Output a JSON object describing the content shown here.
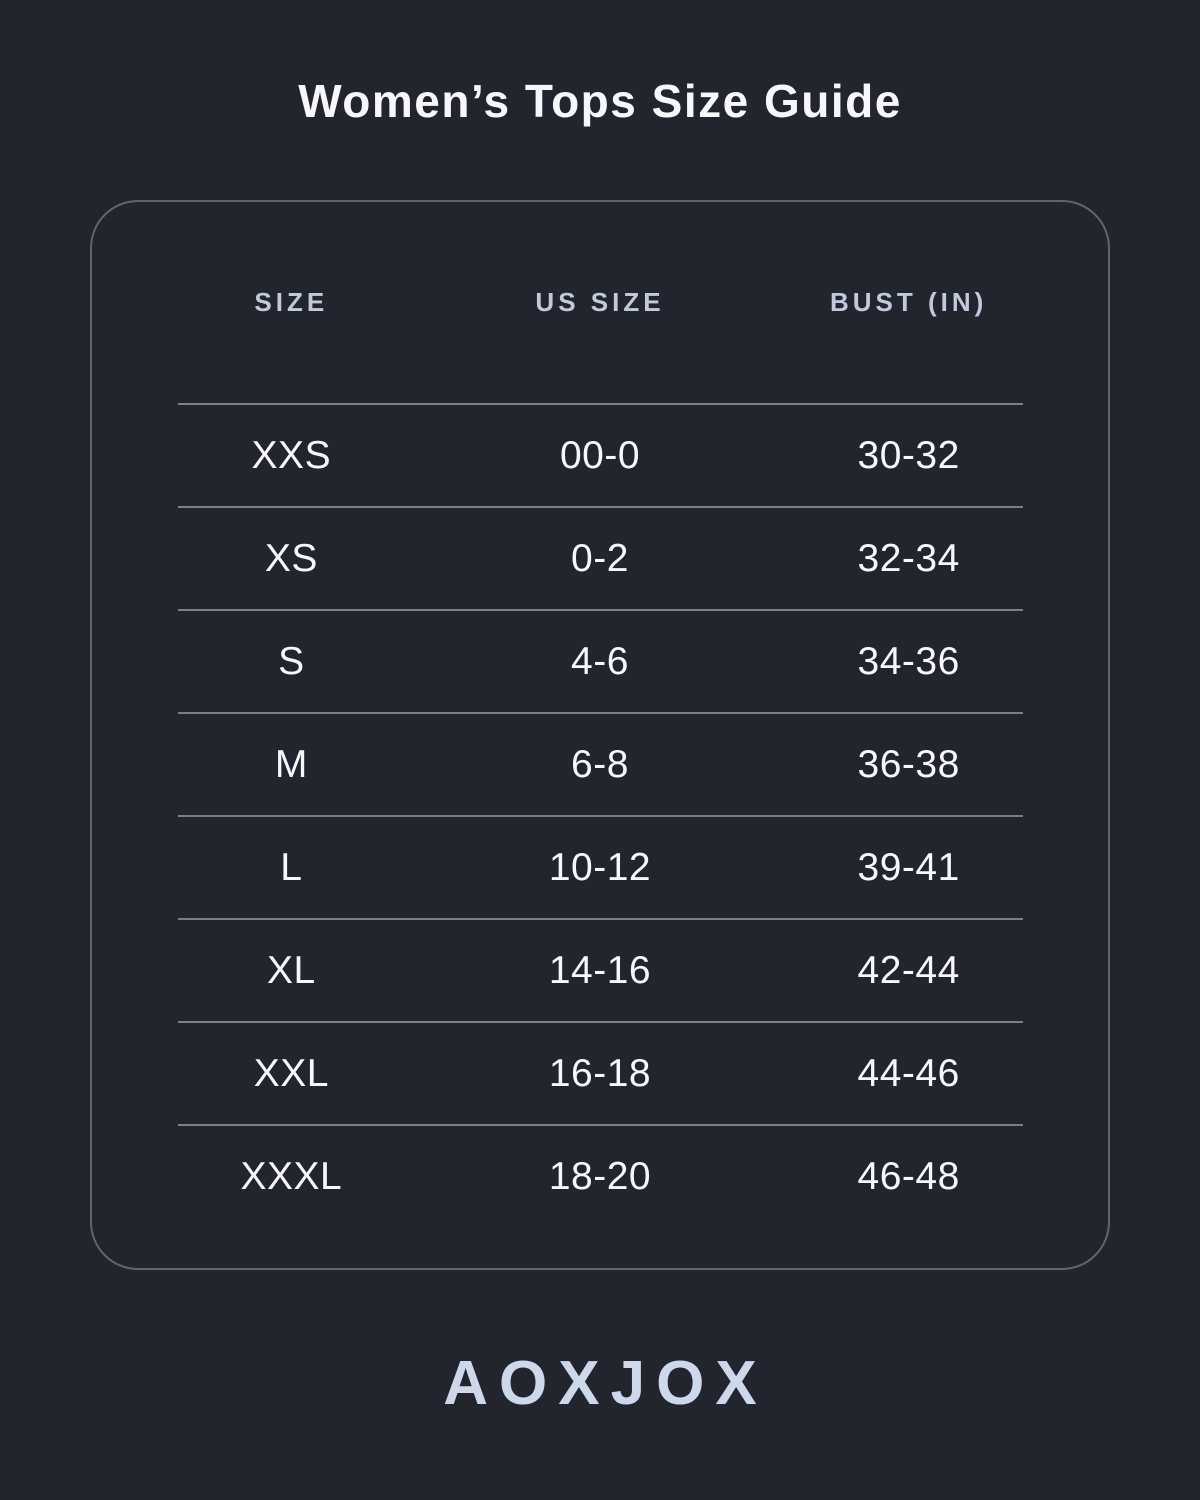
{
  "page": {
    "title": "Women’s Tops Size Guide",
    "brand": "AOXJOX"
  },
  "colors": {
    "background": "#23252e",
    "title_text": "#f5f7fa",
    "header_text": "#bfcadd",
    "cell_text": "#f5f7fa",
    "divider": "#7b7f89",
    "card_border": "#60646e",
    "logo_text": "#cdd9eb"
  },
  "chart_data": {
    "type": "table",
    "title": "Women’s Tops Size Guide",
    "columns": [
      "SIZE",
      "US SIZE",
      "BUST (IN)"
    ],
    "rows": [
      {
        "size": "XXS",
        "us_size": "00-0",
        "bust_in": "30-32"
      },
      {
        "size": "XS",
        "us_size": "0-2",
        "bust_in": "32-34"
      },
      {
        "size": "S",
        "us_size": "4-6",
        "bust_in": "34-36"
      },
      {
        "size": "M",
        "us_size": "6-8",
        "bust_in": "36-38"
      },
      {
        "size": "L",
        "us_size": "10-12",
        "bust_in": "39-41"
      },
      {
        "size": "XL",
        "us_size": "14-16",
        "bust_in": "42-44"
      },
      {
        "size": "XXL",
        "us_size": "16-18",
        "bust_in": "44-46"
      },
      {
        "size": "XXXL",
        "us_size": "18-20",
        "bust_in": "46-48"
      }
    ]
  }
}
